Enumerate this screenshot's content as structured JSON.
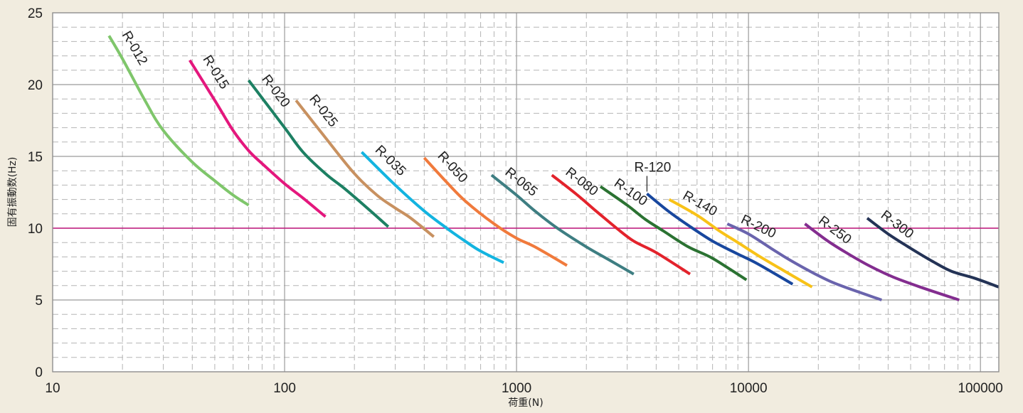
{
  "chart_data": {
    "type": "line",
    "title": "",
    "xlabel": "荷重(N)",
    "ylabel": "固有振動数(Hz)",
    "x_scale": "log",
    "xlim": [
      10,
      120000
    ],
    "ylim": [
      0,
      25
    ],
    "x_ticks": [
      "10",
      "100",
      "1000",
      "10000",
      "100000"
    ],
    "y_ticks": [
      "0",
      "5",
      "10",
      "15",
      "20",
      "25"
    ],
    "grid": true,
    "reference_line": {
      "y": 10,
      "color": "#c2187e"
    },
    "legend": "none",
    "series": [
      {
        "name": "R-012",
        "color": "#7fc66b",
        "x": [
          17.5,
          20,
          25,
          30,
          40,
          50,
          60,
          70
        ],
        "y": [
          23.4,
          21.8,
          18.9,
          16.8,
          14.6,
          13.3,
          12.3,
          11.6
        ]
      },
      {
        "name": "R-015",
        "color": "#e4177d",
        "x": [
          39,
          50,
          60,
          70,
          80,
          100,
          120,
          150
        ],
        "y": [
          21.7,
          18.9,
          16.8,
          15.4,
          14.5,
          13.1,
          12.1,
          10.8
        ]
      },
      {
        "name": "R-020",
        "color": "#1d8063",
        "x": [
          70,
          100,
          120,
          150,
          180,
          220,
          280
        ],
        "y": [
          20.3,
          17.0,
          15.3,
          13.8,
          12.8,
          11.6,
          10.1
        ]
      },
      {
        "name": "R-025",
        "color": "#c89160",
        "x": [
          112,
          150,
          200,
          250,
          300,
          350,
          440
        ],
        "y": [
          18.9,
          16.3,
          13.8,
          12.3,
          11.4,
          10.7,
          9.4
        ]
      },
      {
        "name": "R-035",
        "color": "#13b4e0",
        "x": [
          215,
          300,
          400,
          500,
          600,
          700,
          880
        ],
        "y": [
          15.3,
          13.0,
          11.2,
          10.0,
          9.1,
          8.4,
          7.6
        ]
      },
      {
        "name": "R-050",
        "color": "#f07a3c",
        "x": [
          400,
          500,
          600,
          800,
          1000,
          1200,
          1650
        ],
        "y": [
          14.9,
          13.2,
          11.9,
          10.3,
          9.3,
          8.7,
          7.4
        ]
      },
      {
        "name": "R-065",
        "color": "#3e7e82",
        "x": [
          780,
          1000,
          1200,
          1500,
          2000,
          2500,
          3200
        ],
        "y": [
          13.7,
          12.3,
          11.2,
          10.0,
          8.7,
          7.8,
          6.8
        ]
      },
      {
        "name": "R-080",
        "color": "#e3232c",
        "x": [
          1420,
          1800,
          2200,
          2700,
          3200,
          4000,
          5600
        ],
        "y": [
          13.7,
          12.4,
          11.2,
          10.0,
          9.1,
          8.3,
          6.8
        ]
      },
      {
        "name": "R-100",
        "color": "#2b7232",
        "x": [
          2300,
          3000,
          3600,
          4300,
          5500,
          7000,
          9800
        ],
        "y": [
          12.9,
          11.6,
          10.6,
          9.8,
          8.7,
          7.9,
          6.4
        ]
      },
      {
        "name": "R-120",
        "color": "#18479e",
        "x": [
          3650,
          4500,
          5500,
          7000,
          9000,
          11000,
          15500
        ],
        "y": [
          12.4,
          11.2,
          10.2,
          9.1,
          8.2,
          7.5,
          6.1
        ]
      },
      {
        "name": "R-140",
        "color": "#f8c218",
        "x": [
          4550,
          6000,
          7500,
          9000,
          11000,
          14000,
          18800
        ],
        "y": [
          12.0,
          10.9,
          9.8,
          9.0,
          8.1,
          7.1,
          5.9
        ]
      },
      {
        "name": "R-200",
        "color": "#6a64ad",
        "x": [
          8100,
          10000,
          12500,
          15000,
          20000,
          25000,
          37500
        ],
        "y": [
          10.3,
          9.6,
          8.6,
          7.8,
          6.7,
          6.0,
          5.0
        ]
      },
      {
        "name": "R-250",
        "color": "#832d8f",
        "x": [
          17500,
          22000,
          27000,
          33000,
          42000,
          55000,
          81000
        ],
        "y": [
          10.3,
          9.1,
          8.2,
          7.4,
          6.6,
          5.9,
          5.0
        ]
      },
      {
        "name": "R-300",
        "color": "#243356",
        "x": [
          32500,
          40000,
          50000,
          62000,
          75000,
          95000,
          120000
        ],
        "y": [
          10.7,
          9.6,
          8.6,
          7.7,
          7.0,
          6.5,
          5.9
        ]
      }
    ]
  }
}
